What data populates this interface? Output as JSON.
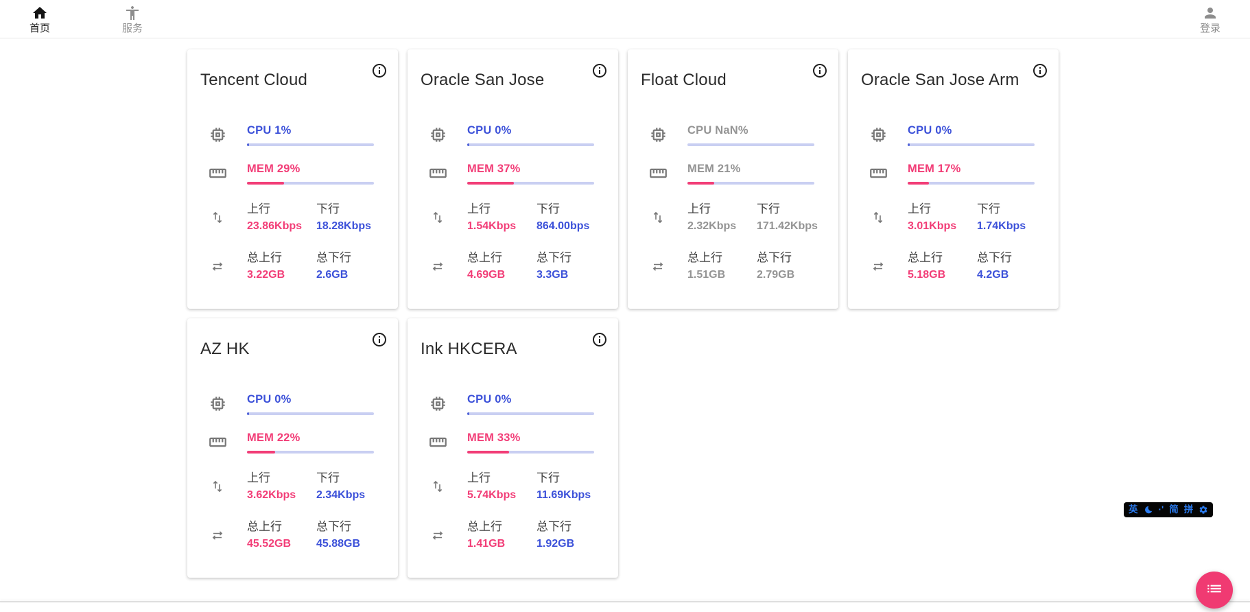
{
  "nav": {
    "home": {
      "label": "首页",
      "icon": "home-icon"
    },
    "services": {
      "label": "服务",
      "icon": "accessibility-icon"
    },
    "login": {
      "label": "登录",
      "icon": "person-icon"
    }
  },
  "labels": {
    "up": "上行",
    "down": "下行",
    "total_up": "总上行",
    "total_down": "总下行"
  },
  "colors": {
    "accent_blue": "#3c51d9",
    "accent_pink": "#f23d77",
    "bar_track": "#c9cff2",
    "muted_gray": "#949494",
    "fab_pink": "#f03a72",
    "ime_blue": "#2b7cf0"
  },
  "servers": [
    {
      "name": "Tencent Cloud",
      "cpu_label": "CPU 1%",
      "cpu_pct": 1,
      "mem_label": "MEM 29%",
      "mem_pct": 29,
      "up": "23.86Kbps",
      "down": "18.28Kbps",
      "total_up": "3.22GB",
      "total_down": "2.6GB",
      "muted": false
    },
    {
      "name": "Oracle San Jose",
      "cpu_label": "CPU 0%",
      "cpu_pct": 0,
      "mem_label": "MEM 37%",
      "mem_pct": 37,
      "up": "1.54Kbps",
      "down": "864.00bps",
      "total_up": "4.69GB",
      "total_down": "3.3GB",
      "muted": false
    },
    {
      "name": "Float Cloud",
      "cpu_label": "CPU NaN%",
      "cpu_pct": null,
      "mem_label": "MEM 21%",
      "mem_pct": 21,
      "up": "2.32Kbps",
      "down": "171.42Kbps",
      "total_up": "1.51GB",
      "total_down": "2.79GB",
      "muted": true
    },
    {
      "name": "Oracle San Jose Arm",
      "cpu_label": "CPU 0%",
      "cpu_pct": 0,
      "mem_label": "MEM 17%",
      "mem_pct": 17,
      "up": "3.01Kbps",
      "down": "1.74Kbps",
      "total_up": "5.18GB",
      "total_down": "4.2GB",
      "muted": false
    },
    {
      "name": "AZ HK",
      "cpu_label": "CPU 0%",
      "cpu_pct": 0,
      "mem_label": "MEM 22%",
      "mem_pct": 22,
      "up": "3.62Kbps",
      "down": "2.34Kbps",
      "total_up": "45.52GB",
      "total_down": "45.88GB",
      "muted": false
    },
    {
      "name": "Ink HKCERA",
      "cpu_label": "CPU 0%",
      "cpu_pct": 0,
      "mem_label": "MEM 33%",
      "mem_pct": 33,
      "up": "5.74Kbps",
      "down": "11.69Kbps",
      "total_up": "1.41GB",
      "total_down": "1.92GB",
      "muted": false
    }
  ],
  "ime_bar": {
    "lang": "英",
    "moon": "moon-icon",
    "punct": "·'",
    "simplified": "简",
    "pinyin": "拼",
    "settings": "gear-icon"
  },
  "fab": {
    "icon": "list-icon"
  }
}
